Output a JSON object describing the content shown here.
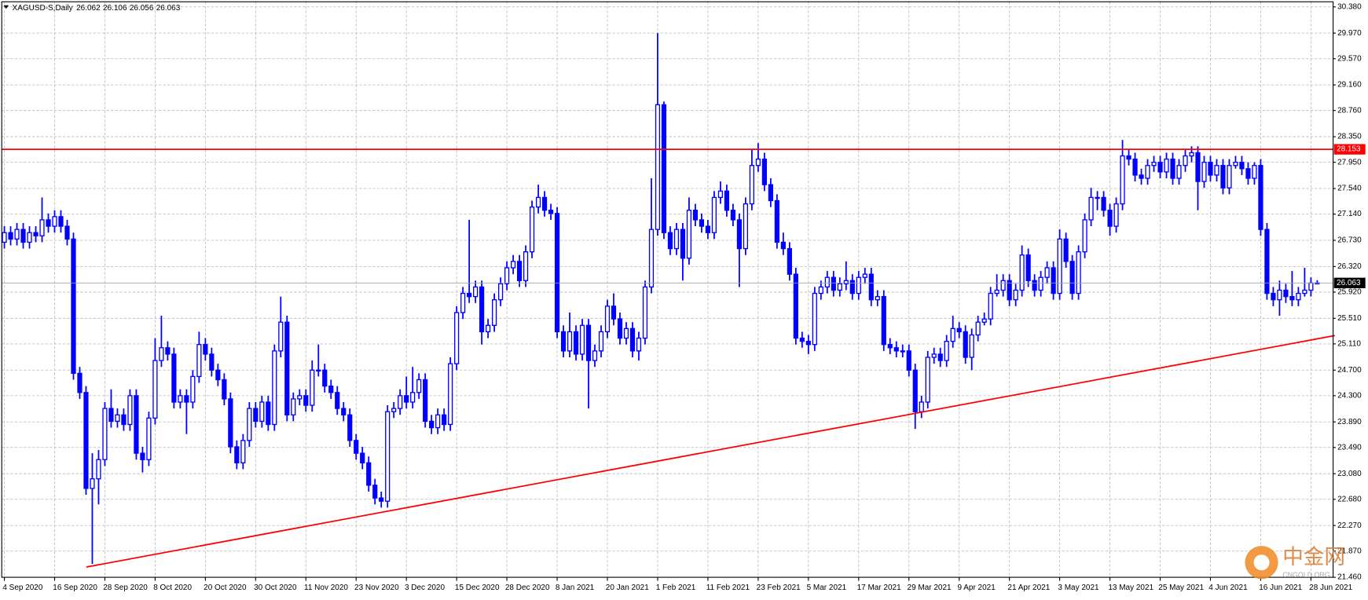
{
  "chart_data": {
    "type": "candlestick",
    "symbol": "XAGUSD-S,Daily",
    "color": "#0000ff",
    "grid": true,
    "ylim": [
      21.46,
      30.46
    ],
    "yticks": [
      {
        "value": 30.38,
        "label": "30.380"
      },
      {
        "value": 29.97,
        "label": "29.970"
      },
      {
        "value": 29.57,
        "label": "29.570"
      },
      {
        "value": 29.16,
        "label": "29.160"
      },
      {
        "value": 28.76,
        "label": "28.760"
      },
      {
        "value": 28.35,
        "label": "28.350"
      },
      {
        "value": 27.95,
        "label": "27.950"
      },
      {
        "value": 27.54,
        "label": "27.540"
      },
      {
        "value": 27.14,
        "label": "27.140"
      },
      {
        "value": 26.73,
        "label": "26.730"
      },
      {
        "value": 26.32,
        "label": "26.320"
      },
      {
        "value": 25.92,
        "label": "25.920"
      },
      {
        "value": 25.51,
        "label": "25.510"
      },
      {
        "value": 25.11,
        "label": "25.110"
      },
      {
        "value": 24.7,
        "label": "24.700"
      },
      {
        "value": 24.3,
        "label": "24.300"
      },
      {
        "value": 23.89,
        "label": "23.890"
      },
      {
        "value": 23.49,
        "label": "23.490"
      },
      {
        "value": 23.08,
        "label": "23.080"
      },
      {
        "value": 22.68,
        "label": "22.680"
      },
      {
        "value": 22.27,
        "label": "22.270"
      },
      {
        "value": 21.87,
        "label": "21.870"
      },
      {
        "value": 21.46,
        "label": "21.460"
      }
    ],
    "xticks": [
      {
        "value": 0,
        "label": "4 Sep 2020"
      },
      {
        "value": 8,
        "label": "16 Sep 2020"
      },
      {
        "value": 16,
        "label": "28 Sep 2020"
      },
      {
        "value": 24,
        "label": "8 Oct 2020"
      },
      {
        "value": 32,
        "label": "20 Oct 2020"
      },
      {
        "value": 40,
        "label": "30 Oct 2020"
      },
      {
        "value": 48,
        "label": "11 Nov 2020"
      },
      {
        "value": 56,
        "label": "23 Nov 2020"
      },
      {
        "value": 64,
        "label": "3 Dec 2020"
      },
      {
        "value": 72,
        "label": "15 Dec 2020"
      },
      {
        "value": 80,
        "label": "28 Dec 2020"
      },
      {
        "value": 88,
        "label": "8 Jan 2021"
      },
      {
        "value": 96,
        "label": "20 Jan 2021"
      },
      {
        "value": 104,
        "label": "1 Feb 2021"
      },
      {
        "value": 112,
        "label": "11 Feb 2021"
      },
      {
        "value": 120,
        "label": "23 Feb 2021"
      },
      {
        "value": 128,
        "label": "5 Mar 2021"
      },
      {
        "value": 136,
        "label": "17 Mar 2021"
      },
      {
        "value": 144,
        "label": "29 Mar 2021"
      },
      {
        "value": 152,
        "label": "9 Apr 2021"
      },
      {
        "value": 160,
        "label": "21 Apr 2021"
      },
      {
        "value": 168,
        "label": "3 May 2021"
      },
      {
        "value": 176,
        "label": "13 May 2021"
      },
      {
        "value": 184,
        "label": "25 May 2021"
      },
      {
        "value": 192,
        "label": "4 Jun 2021"
      },
      {
        "value": 200,
        "label": "16 Jun 2021"
      },
      {
        "value": 208,
        "label": "28 Jun 2021"
      }
    ],
    "candles": [
      [
        26.7,
        26.95,
        26.6,
        26.85
      ],
      [
        26.85,
        26.95,
        26.65,
        26.75
      ],
      [
        26.75,
        27.0,
        26.65,
        26.9
      ],
      [
        26.9,
        27.0,
        26.6,
        26.7
      ],
      [
        26.7,
        26.95,
        26.6,
        26.85
      ],
      [
        26.85,
        26.95,
        26.7,
        26.8
      ],
      [
        26.8,
        27.4,
        26.7,
        27.05
      ],
      [
        27.05,
        27.15,
        26.85,
        26.95
      ],
      [
        26.95,
        27.2,
        26.85,
        27.1
      ],
      [
        27.1,
        27.2,
        26.85,
        26.95
      ],
      [
        26.95,
        27.05,
        26.65,
        26.75
      ],
      [
        26.75,
        26.85,
        24.55,
        24.65
      ],
      [
        24.65,
        24.75,
        24.25,
        24.35
      ],
      [
        24.35,
        24.45,
        22.75,
        22.85
      ],
      [
        22.85,
        23.4,
        21.67,
        23.0
      ],
      [
        23.0,
        23.45,
        22.6,
        23.3
      ],
      [
        23.3,
        24.2,
        23.2,
        24.1
      ],
      [
        24.1,
        24.4,
        23.8,
        23.9
      ],
      [
        23.9,
        24.1,
        23.8,
        24.0
      ],
      [
        24.0,
        24.1,
        23.75,
        23.85
      ],
      [
        23.85,
        24.4,
        23.75,
        24.3
      ],
      [
        24.3,
        24.4,
        23.3,
        23.4
      ],
      [
        23.4,
        23.5,
        23.1,
        23.3
      ],
      [
        23.3,
        24.05,
        23.2,
        23.95
      ],
      [
        23.95,
        25.2,
        23.85,
        24.85
      ],
      [
        24.85,
        25.55,
        24.75,
        25.05
      ],
      [
        25.05,
        25.15,
        24.85,
        24.95
      ],
      [
        24.95,
        25.05,
        24.1,
        24.2
      ],
      [
        24.2,
        24.4,
        24.1,
        24.3
      ],
      [
        24.3,
        24.4,
        23.7,
        24.2
      ],
      [
        24.2,
        24.7,
        24.1,
        24.6
      ],
      [
        24.6,
        25.3,
        24.5,
        25.1
      ],
      [
        25.1,
        25.2,
        24.85,
        24.95
      ],
      [
        24.95,
        25.05,
        24.6,
        24.7
      ],
      [
        24.7,
        24.8,
        24.45,
        24.55
      ],
      [
        24.55,
        24.65,
        24.15,
        24.25
      ],
      [
        24.25,
        24.35,
        23.4,
        23.5
      ],
      [
        23.5,
        23.6,
        23.15,
        23.25
      ],
      [
        23.25,
        23.7,
        23.15,
        23.6
      ],
      [
        23.6,
        24.2,
        23.5,
        24.1
      ],
      [
        24.1,
        24.2,
        23.8,
        23.9
      ],
      [
        23.9,
        24.3,
        23.8,
        24.2
      ],
      [
        24.2,
        24.3,
        23.75,
        23.85
      ],
      [
        23.85,
        25.1,
        23.75,
        25.0
      ],
      [
        25.0,
        25.85,
        24.9,
        25.45
      ],
      [
        25.45,
        25.55,
        23.9,
        24.0
      ],
      [
        24.0,
        24.35,
        23.9,
        24.25
      ],
      [
        24.25,
        24.4,
        24.15,
        24.3
      ],
      [
        24.3,
        24.4,
        24.05,
        24.15
      ],
      [
        24.15,
        24.85,
        24.05,
        24.7
      ],
      [
        24.7,
        25.1,
        24.6,
        24.7
      ],
      [
        24.7,
        24.8,
        24.35,
        24.45
      ],
      [
        24.45,
        24.55,
        24.25,
        24.35
      ],
      [
        24.35,
        24.45,
        24.0,
        24.1
      ],
      [
        24.1,
        24.2,
        23.9,
        24.0
      ],
      [
        24.0,
        24.1,
        23.5,
        23.6
      ],
      [
        23.6,
        23.7,
        23.3,
        23.4
      ],
      [
        23.4,
        23.5,
        23.15,
        23.25
      ],
      [
        23.25,
        23.35,
        22.8,
        22.9
      ],
      [
        22.9,
        23.0,
        22.6,
        22.7
      ],
      [
        22.7,
        22.8,
        22.55,
        22.65
      ],
      [
        22.65,
        24.15,
        22.55,
        24.05
      ],
      [
        24.05,
        24.2,
        23.95,
        24.1
      ],
      [
        24.1,
        24.4,
        24.0,
        24.3
      ],
      [
        24.3,
        24.6,
        24.1,
        24.2
      ],
      [
        24.2,
        24.75,
        24.1,
        24.35
      ],
      [
        24.35,
        24.65,
        24.25,
        24.55
      ],
      [
        24.55,
        24.65,
        23.8,
        23.9
      ],
      [
        23.9,
        24.0,
        23.7,
        23.8
      ],
      [
        23.8,
        24.1,
        23.7,
        24.0
      ],
      [
        24.0,
        24.1,
        23.75,
        23.85
      ],
      [
        23.85,
        24.9,
        23.75,
        24.8
      ],
      [
        24.8,
        25.7,
        24.7,
        25.6
      ],
      [
        25.6,
        26.0,
        25.5,
        25.9
      ],
      [
        25.9,
        27.05,
        25.75,
        25.85
      ],
      [
        25.85,
        26.1,
        25.75,
        26.0
      ],
      [
        26.0,
        26.1,
        25.1,
        25.3
      ],
      [
        25.3,
        25.5,
        25.2,
        25.4
      ],
      [
        25.4,
        25.9,
        25.3,
        25.8
      ],
      [
        25.8,
        26.15,
        25.7,
        26.05
      ],
      [
        26.05,
        26.4,
        25.95,
        26.3
      ],
      [
        26.3,
        26.5,
        26.2,
        26.4
      ],
      [
        26.4,
        26.5,
        26.0,
        26.1
      ],
      [
        26.1,
        26.65,
        26.0,
        26.55
      ],
      [
        26.55,
        27.35,
        26.45,
        27.25
      ],
      [
        27.25,
        27.6,
        27.15,
        27.4
      ],
      [
        27.4,
        27.5,
        27.1,
        27.2
      ],
      [
        27.2,
        27.3,
        27.05,
        27.15
      ],
      [
        27.15,
        27.25,
        25.2,
        25.3
      ],
      [
        25.3,
        25.4,
        24.9,
        25.0
      ],
      [
        25.0,
        25.6,
        24.9,
        25.3
      ],
      [
        25.3,
        25.4,
        24.85,
        24.95
      ],
      [
        24.95,
        25.5,
        24.85,
        25.4
      ],
      [
        25.4,
        25.5,
        24.1,
        24.85
      ],
      [
        24.85,
        25.1,
        24.75,
        25.0
      ],
      [
        25.0,
        25.4,
        24.9,
        25.3
      ],
      [
        25.3,
        25.8,
        25.2,
        25.7
      ],
      [
        25.7,
        25.9,
        25.4,
        25.5
      ],
      [
        25.5,
        25.6,
        25.1,
        25.2
      ],
      [
        25.2,
        25.45,
        25.1,
        25.35
      ],
      [
        25.35,
        25.45,
        24.9,
        25.0
      ],
      [
        25.0,
        25.3,
        24.85,
        25.2
      ],
      [
        25.2,
        26.1,
        25.1,
        26.0
      ],
      [
        26.0,
        27.7,
        25.9,
        26.9
      ],
      [
        26.9,
        29.97,
        26.8,
        28.85
      ],
      [
        28.85,
        28.9,
        26.75,
        26.85
      ],
      [
        26.85,
        26.95,
        26.5,
        26.6
      ],
      [
        26.6,
        27.0,
        26.5,
        26.9
      ],
      [
        26.9,
        27.0,
        26.1,
        26.45
      ],
      [
        26.45,
        27.4,
        26.35,
        27.2
      ],
      [
        27.2,
        27.3,
        26.95,
        27.05
      ],
      [
        27.05,
        27.15,
        26.85,
        26.95
      ],
      [
        26.95,
        27.05,
        26.75,
        26.85
      ],
      [
        26.85,
        27.5,
        26.75,
        27.4
      ],
      [
        27.4,
        27.65,
        27.3,
        27.5
      ],
      [
        27.5,
        27.6,
        27.1,
        27.2
      ],
      [
        27.2,
        27.3,
        26.95,
        27.05
      ],
      [
        27.05,
        27.15,
        26.0,
        26.6
      ],
      [
        26.6,
        27.4,
        26.5,
        27.3
      ],
      [
        27.3,
        28.15,
        27.2,
        27.9
      ],
      [
        27.9,
        28.25,
        27.8,
        28.0
      ],
      [
        28.0,
        28.1,
        27.5,
        27.6
      ],
      [
        27.6,
        27.7,
        27.25,
        27.35
      ],
      [
        27.35,
        27.45,
        26.6,
        26.7
      ],
      [
        26.7,
        26.85,
        26.5,
        26.6
      ],
      [
        26.6,
        26.7,
        26.1,
        26.2
      ],
      [
        26.2,
        26.3,
        25.1,
        25.2
      ],
      [
        25.2,
        25.3,
        25.05,
        25.15
      ],
      [
        25.15,
        25.25,
        24.95,
        25.1
      ],
      [
        25.1,
        26.0,
        25.0,
        25.9
      ],
      [
        25.9,
        26.1,
        25.8,
        26.0
      ],
      [
        26.0,
        26.25,
        25.9,
        26.15
      ],
      [
        26.15,
        26.25,
        25.85,
        25.95
      ],
      [
        25.95,
        26.15,
        25.85,
        26.05
      ],
      [
        26.05,
        26.4,
        25.95,
        26.1
      ],
      [
        26.1,
        26.2,
        25.8,
        25.9
      ],
      [
        25.9,
        26.25,
        25.8,
        26.15
      ],
      [
        26.15,
        26.3,
        26.05,
        26.2
      ],
      [
        26.2,
        26.3,
        25.7,
        25.8
      ],
      [
        25.8,
        25.95,
        25.7,
        25.85
      ],
      [
        25.85,
        25.95,
        25.0,
        25.1
      ],
      [
        25.1,
        25.2,
        24.95,
        25.05
      ],
      [
        25.05,
        25.15,
        24.9,
        25.0
      ],
      [
        25.0,
        25.1,
        24.9,
        25.0
      ],
      [
        25.0,
        25.1,
        24.6,
        24.7
      ],
      [
        24.7,
        24.8,
        23.78,
        24.05
      ],
      [
        24.05,
        24.3,
        23.95,
        24.2
      ],
      [
        24.2,
        25.0,
        24.1,
        24.9
      ],
      [
        24.9,
        25.05,
        24.8,
        24.95
      ],
      [
        24.95,
        25.05,
        24.75,
        24.85
      ],
      [
        24.85,
        25.25,
        24.75,
        25.15
      ],
      [
        25.15,
        25.55,
        25.05,
        25.35
      ],
      [
        25.35,
        25.45,
        25.2,
        25.3
      ],
      [
        25.3,
        25.4,
        24.8,
        24.9
      ],
      [
        24.9,
        25.35,
        24.7,
        25.25
      ],
      [
        25.25,
        25.55,
        25.15,
        25.45
      ],
      [
        25.45,
        25.6,
        25.4,
        25.5
      ],
      [
        25.5,
        26.0,
        25.4,
        25.9
      ],
      [
        25.9,
        26.2,
        25.85,
        25.95
      ],
      [
        25.95,
        26.2,
        25.85,
        26.1
      ],
      [
        26.1,
        26.2,
        25.7,
        25.8
      ],
      [
        25.8,
        26.05,
        25.7,
        25.95
      ],
      [
        25.95,
        26.65,
        25.85,
        26.5
      ],
      [
        26.5,
        26.6,
        26.0,
        26.1
      ],
      [
        26.1,
        26.2,
        25.85,
        25.95
      ],
      [
        25.95,
        26.25,
        25.85,
        26.15
      ],
      [
        26.15,
        26.4,
        26.05,
        26.3
      ],
      [
        26.3,
        26.4,
        25.8,
        25.9
      ],
      [
        25.9,
        26.9,
        25.8,
        26.75
      ],
      [
        26.75,
        26.85,
        26.3,
        26.4
      ],
      [
        26.4,
        26.5,
        25.8,
        25.9
      ],
      [
        25.9,
        26.65,
        25.8,
        26.55
      ],
      [
        26.55,
        27.15,
        26.45,
        27.05
      ],
      [
        27.05,
        27.55,
        26.95,
        27.4
      ],
      [
        27.4,
        27.5,
        27.2,
        27.4
      ],
      [
        27.4,
        27.5,
        27.1,
        27.2
      ],
      [
        27.2,
        27.3,
        26.8,
        26.95
      ],
      [
        26.95,
        27.4,
        26.85,
        27.3
      ],
      [
        27.3,
        28.3,
        27.2,
        28.05
      ],
      [
        28.05,
        28.15,
        27.9,
        28.0
      ],
      [
        28.0,
        28.1,
        27.65,
        27.75
      ],
      [
        27.75,
        27.85,
        27.6,
        27.7
      ],
      [
        27.7,
        28.0,
        27.6,
        27.9
      ],
      [
        27.9,
        28.05,
        27.8,
        27.95
      ],
      [
        27.95,
        28.05,
        27.7,
        27.8
      ],
      [
        27.8,
        28.1,
        27.7,
        28.0
      ],
      [
        28.0,
        28.1,
        27.6,
        27.7
      ],
      [
        27.7,
        28.0,
        27.6,
        27.9
      ],
      [
        27.9,
        28.15,
        27.8,
        28.05
      ],
      [
        28.05,
        28.2,
        27.95,
        28.1
      ],
      [
        28.1,
        28.2,
        27.2,
        27.65
      ],
      [
        27.65,
        28.05,
        27.55,
        27.95
      ],
      [
        27.95,
        28.05,
        27.65,
        27.75
      ],
      [
        27.75,
        28.0,
        27.65,
        27.9
      ],
      [
        27.9,
        28.0,
        27.45,
        27.55
      ],
      [
        27.55,
        28.0,
        27.45,
        27.9
      ],
      [
        27.9,
        28.05,
        27.85,
        27.95
      ],
      [
        27.95,
        28.05,
        27.75,
        27.85
      ],
      [
        27.85,
        27.95,
        27.6,
        27.7
      ],
      [
        27.7,
        27.95,
        27.6,
        27.9
      ],
      [
        27.9,
        28.0,
        26.8,
        26.9
      ],
      [
        26.9,
        27.0,
        25.8,
        25.9
      ],
      [
        25.9,
        26.0,
        25.7,
        25.8
      ],
      [
        25.8,
        26.1,
        25.55,
        25.95
      ],
      [
        25.95,
        26.05,
        25.75,
        25.85
      ],
      [
        25.85,
        26.25,
        25.7,
        25.8
      ],
      [
        25.8,
        26.0,
        25.7,
        25.9
      ],
      [
        25.9,
        26.3,
        25.85,
        25.95
      ],
      [
        25.95,
        26.15,
        25.85,
        26.062
      ],
      [
        26.062,
        26.106,
        26.056,
        26.063
      ]
    ],
    "hline": {
      "value": 28.153,
      "color": "#ff0000"
    },
    "trendline": {
      "x": [
        13.05,
        211.8
      ],
      "y": [
        21.62,
        25.24
      ],
      "color": "#ff0000"
    },
    "watermark": [
      "中金网",
      "CNGOLD.ORG"
    ]
  }
}
